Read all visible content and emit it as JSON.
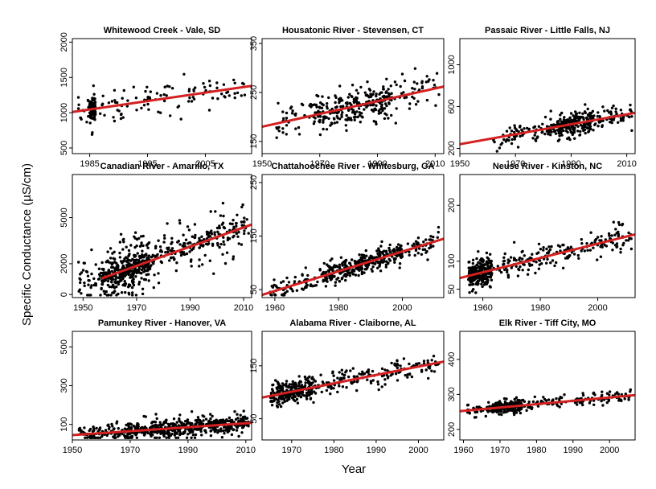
{
  "figure": {
    "xlabel": "Year",
    "ylabel": "Specific Conductance (µS/cm)"
  },
  "chart_data": [
    {
      "type": "scatter",
      "title": "Whitewood Creek - Vale, SD",
      "xlim": [
        1982,
        2013
      ],
      "ylim": [
        420,
        2050
      ],
      "xticks": [
        1985,
        1995,
        2005
      ],
      "yticks": [
        500,
        1000,
        1500,
        2000
      ],
      "data_range": [
        1983,
        2012
      ],
      "points": 210,
      "cluster": [
        1985,
        1986,
        1.4
      ],
      "trend": {
        "x": [
          1982,
          2013
        ],
        "y": [
          1010,
          1380
        ]
      },
      "spread": 290,
      "color_line": "#d42020",
      "color_points": "#000000"
    },
    {
      "type": "scatter",
      "title": "Housatonic River - Stevensen, CT",
      "xlim": [
        1950,
        2013
      ],
      "ylim": [
        125,
        360
      ],
      "xticks": [
        1950,
        1970,
        1990,
        2010
      ],
      "yticks": [
        150,
        250,
        350
      ],
      "data_range": [
        1955,
        2012
      ],
      "points": 330,
      "cluster": [
        1968,
        1995,
        1.6
      ],
      "trend": {
        "x": [
          1950,
          2013
        ],
        "y": [
          180,
          262
        ]
      },
      "spread": 38,
      "color_line": "#d42020",
      "color_points": "#000000"
    },
    {
      "type": "scatter",
      "title": "Passaic River - Little Falls, NJ",
      "xlim": [
        1950,
        2013
      ],
      "ylim": [
        150,
        1250
      ],
      "xticks": [
        1950,
        1970,
        1990,
        2010
      ],
      "yticks": [
        200,
        600,
        1000
      ],
      "data_range": [
        1962,
        2012
      ],
      "points": 360,
      "cluster": [
        1985,
        1998,
        1.8
      ],
      "trend": {
        "x": [
          1950,
          2013
        ],
        "y": [
          240,
          540
        ]
      },
      "spread": 110,
      "color_line": "#d42020",
      "color_points": "#000000"
    },
    {
      "type": "scatter",
      "title": "Canadian River - Amarillo, TX",
      "xlim": [
        1946,
        2013
      ],
      "ylim": [
        -200,
        7800
      ],
      "xticks": [
        1950,
        1970,
        1990,
        2010
      ],
      "yticks": [
        0,
        2000,
        5000
      ],
      "data_range": [
        1948,
        2012
      ],
      "points": 650,
      "cluster": [
        1957,
        1975,
        2.5
      ],
      "trend": {
        "x": [
          1957,
          2013
        ],
        "y": [
          1050,
          4550
        ]
      },
      "spread": 1100,
      "color_line": "#d42020",
      "color_points": "#000000"
    },
    {
      "type": "scatter",
      "title": "Chattahoochee River - Whitesburg, GA",
      "xlim": [
        1956,
        2013
      ],
      "ylim": [
        35,
        265
      ],
      "xticks": [
        1960,
        1980,
        2000
      ],
      "yticks": [
        50,
        150,
        250
      ],
      "data_range": [
        1958,
        2012
      ],
      "points": 430,
      "cluster": [
        1975,
        2000,
        1.6
      ],
      "trend": {
        "x": [
          1956,
          2013
        ],
        "y": [
          40,
          145
        ]
      },
      "spread": 22,
      "color_line": "#d42020",
      "color_points": "#000000"
    },
    {
      "type": "scatter",
      "title": "Neuse River - Kinston, NC",
      "xlim": [
        1952,
        2013
      ],
      "ylim": [
        35,
        255
      ],
      "xticks": [
        1960,
        1980,
        2000
      ],
      "yticks": [
        50,
        100,
        200
      ],
      "data_range": [
        1955,
        2012
      ],
      "points": 450,
      "cluster": [
        1955,
        1963,
        1.6
      ],
      "trend": {
        "x": [
          1952,
          2013
        ],
        "y": [
          70,
          148
        ]
      },
      "spread": 28,
      "color_line": "#d42020",
      "color_points": "#000000"
    },
    {
      "type": "scatter",
      "title": "Pamunkey River - Hanover, VA",
      "xlim": [
        1950,
        2012
      ],
      "ylim": [
        20,
        580
      ],
      "xticks": [
        1950,
        1970,
        1990,
        2010
      ],
      "yticks": [
        100,
        300,
        500
      ],
      "data_range": [
        1952,
        2011
      ],
      "points": 600,
      "cluster": [
        1968,
        2011,
        2.0
      ],
      "trend": {
        "x": [
          1950,
          2012
        ],
        "y": [
          45,
          108
        ]
      },
      "spread": 45,
      "color_line": "#d42020",
      "color_points": "#000000"
    },
    {
      "type": "scatter",
      "title": "Alabama River - Claiborne, AL",
      "xlim": [
        1963,
        2006
      ],
      "ylim": [
        10,
        215
      ],
      "xticks": [
        1970,
        1980,
        1990,
        2000
      ],
      "yticks": [
        50,
        150
      ],
      "data_range": [
        1965,
        2005
      ],
      "points": 400,
      "cluster": [
        1965,
        1975,
        1.4
      ],
      "trend": {
        "x": [
          1963,
          2006
        ],
        "y": [
          90,
          158
        ]
      },
      "spread": 26,
      "color_line": "#d42020",
      "color_points": "#000000"
    },
    {
      "type": "scatter",
      "title": "Elk River - Tiff City, MO",
      "xlim": [
        1959,
        2007
      ],
      "ylim": [
        170,
        480
      ],
      "xticks": [
        1960,
        1970,
        1980,
        1990,
        2000
      ],
      "yticks": [
        200,
        300,
        400
      ],
      "data_range": [
        1961,
        2006
      ],
      "points": 400,
      "cluster": [
        1968,
        1976,
        1.5
      ],
      "trend": {
        "x": [
          1959,
          2007
        ],
        "y": [
          252,
          298
        ]
      },
      "spread": 20,
      "color_line": "#d42020",
      "color_points": "#000000"
    }
  ]
}
